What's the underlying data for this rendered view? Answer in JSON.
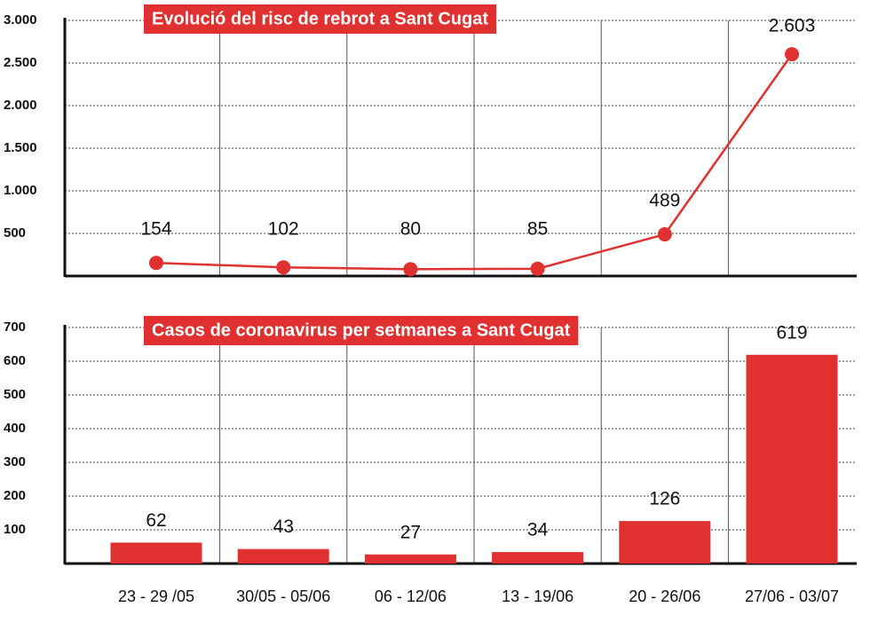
{
  "chart_data": [
    {
      "type": "line",
      "title": "Evolució del risc de rebrot a Sant Cugat",
      "values": [
        154,
        102,
        80,
        85,
        489,
        2603
      ],
      "value_labels": [
        "154",
        "102",
        "80",
        "85",
        "489",
        "2.603"
      ],
      "color": "#e03030",
      "ylim": [
        0,
        3000
      ],
      "yticks": [
        {
          "value": 500,
          "label": "500"
        },
        {
          "value": 1000,
          "label": "1.000"
        },
        {
          "value": 1500,
          "label": "1.500"
        },
        {
          "value": 2000,
          "label": "2.000"
        },
        {
          "value": 2500,
          "label": "2.500"
        },
        {
          "value": 3000,
          "label": "3.000"
        }
      ],
      "grid": true
    },
    {
      "type": "bar",
      "title": "Casos de coronavirus per setmanes a Sant Cugat",
      "categories": [
        "23 - 29 /05",
        "30/05 - 05/06",
        "06 - 12/06",
        "13 - 19/06",
        "20 - 26/06",
        "27/06 - 03/07"
      ],
      "values": [
        62,
        43,
        27,
        34,
        126,
        619
      ],
      "color": "#e03030",
      "ylim": [
        0,
        700
      ],
      "yticks": [
        100,
        200,
        300,
        400,
        500,
        600,
        700
      ],
      "grid": true
    }
  ]
}
